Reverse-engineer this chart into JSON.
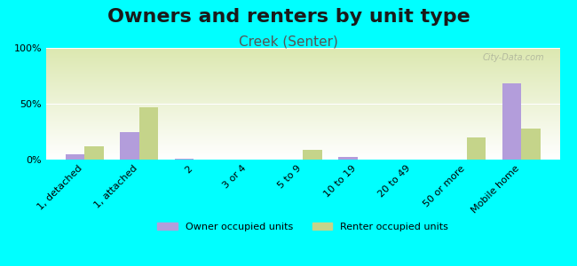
{
  "title": "Owners and renters by unit type",
  "subtitle": "Creek (Senter)",
  "categories": [
    "1, detached",
    "1, attached",
    "2",
    "3 or 4",
    "5 to 9",
    "10 to 19",
    "20 to 49",
    "50 or more",
    "Mobile home"
  ],
  "owner_values": [
    5,
    25,
    1,
    0,
    0,
    2,
    0,
    0,
    68
  ],
  "renter_values": [
    12,
    47,
    0,
    0,
    9,
    0,
    0,
    20,
    28
  ],
  "owner_color": "#b39ddb",
  "renter_color": "#c5d48a",
  "background_color": "#00ffff",
  "plot_bg_top": "#dce8b0",
  "plot_bg_bottom": "#ffffff",
  "bar_width": 0.35,
  "ylim": [
    0,
    100
  ],
  "yticks": [
    0,
    50,
    100
  ],
  "ytick_labels": [
    "0%",
    "50%",
    "100%"
  ],
  "watermark": "City-Data.com",
  "title_fontsize": 16,
  "subtitle_fontsize": 11,
  "legend_owner": "Owner occupied units",
  "legend_renter": "Renter occupied units"
}
